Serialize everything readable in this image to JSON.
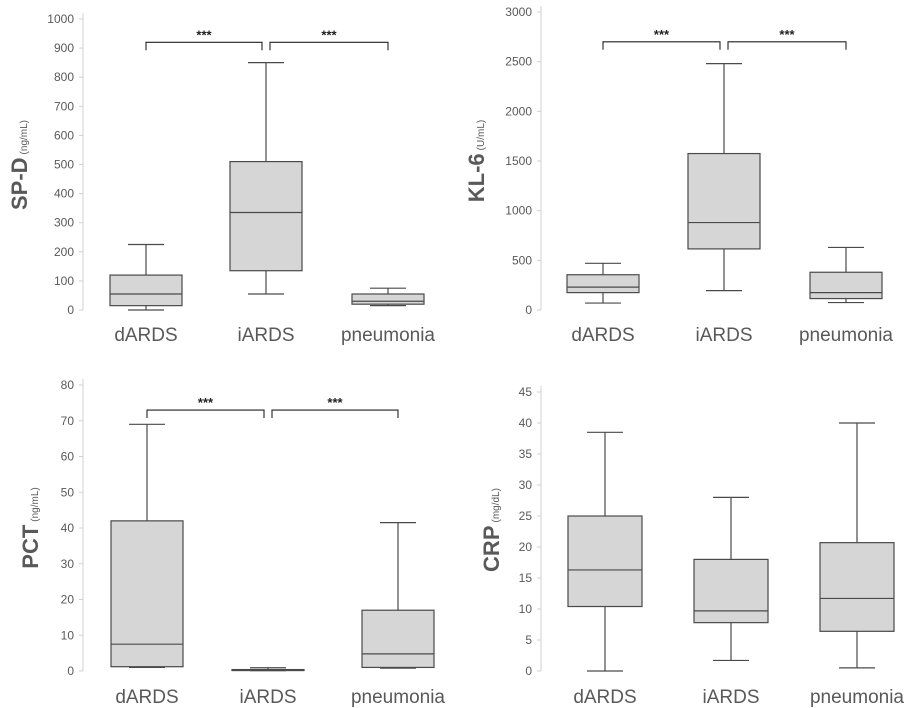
{
  "chart_data": [
    {
      "type": "box",
      "ylabel": "SP-D",
      "yunit": "(ng/mL)",
      "ylim": [
        0,
        1000
      ],
      "yticks": [
        0,
        100,
        200,
        300,
        400,
        500,
        600,
        700,
        800,
        900,
        1000
      ],
      "categories": [
        "dARDS",
        "iARDS",
        "pneumonia"
      ],
      "boxes": [
        {
          "min": 0,
          "q1": 15,
          "median": 55,
          "q3": 120,
          "max": 225
        },
        {
          "min": 55,
          "q1": 135,
          "median": 335,
          "q3": 510,
          "max": 850
        },
        {
          "min": 15,
          "q1": 20,
          "median": 30,
          "q3": 55,
          "max": 75
        }
      ],
      "significance": [
        {
          "from": 0,
          "to": 1,
          "label": "***",
          "y": 920
        },
        {
          "from": 1,
          "to": 2,
          "label": "***",
          "y": 920
        }
      ]
    },
    {
      "type": "box",
      "ylabel": "KL-6",
      "yunit": "(U/mL)",
      "ylim": [
        0,
        3000
      ],
      "yticks": [
        0,
        500,
        1000,
        1500,
        2000,
        2500,
        3000
      ],
      "categories": [
        "dARDS",
        "iARDS",
        "pneumonia"
      ],
      "boxes": [
        {
          "min": 70,
          "q1": 175,
          "median": 230,
          "q3": 355,
          "max": 470
        },
        {
          "min": 195,
          "q1": 615,
          "median": 880,
          "q3": 1575,
          "max": 2480
        },
        {
          "min": 75,
          "q1": 115,
          "median": 175,
          "q3": 380,
          "max": 630
        }
      ],
      "significance": [
        {
          "from": 0,
          "to": 1,
          "label": "***",
          "y": 2700
        },
        {
          "from": 1,
          "to": 2,
          "label": "***",
          "y": 2700
        }
      ]
    },
    {
      "type": "box",
      "ylabel": "PCT",
      "yunit": "(ng/mL)",
      "ylim": [
        0,
        80
      ],
      "yticks": [
        0,
        10,
        20,
        30,
        40,
        50,
        60,
        70,
        80
      ],
      "categories": [
        "dARDS",
        "iARDS",
        "pneumonia"
      ],
      "boxes": [
        {
          "min": 1,
          "q1": 1.2,
          "median": 7.5,
          "q3": 42,
          "max": 69
        },
        {
          "min": 0.1,
          "q1": 0.2,
          "median": 0.3,
          "q3": 0.4,
          "max": 0.9
        },
        {
          "min": 0.8,
          "q1": 1,
          "median": 4.8,
          "q3": 17,
          "max": 41.5
        }
      ],
      "significance": [
        {
          "from": 0,
          "to": 1,
          "label": "***",
          "y": 73
        },
        {
          "from": 1,
          "to": 2,
          "label": "***",
          "y": 73
        }
      ]
    },
    {
      "type": "box",
      "ylabel": "CRP",
      "yunit": "(mg/dL)",
      "ylim": [
        0,
        45
      ],
      "yticks": [
        0,
        5,
        10,
        15,
        20,
        25,
        30,
        35,
        40,
        45
      ],
      "categories": [
        "dARDS",
        "iARDS",
        "pneumonia"
      ],
      "boxes": [
        {
          "min": 0,
          "q1": 10.4,
          "median": 16.3,
          "q3": 25,
          "max": 38.5
        },
        {
          "min": 1.7,
          "q1": 7.8,
          "median": 9.7,
          "q3": 18,
          "max": 28
        },
        {
          "min": 0.5,
          "q1": 6.4,
          "median": 11.7,
          "q3": 20.7,
          "max": 40
        }
      ],
      "significance": []
    }
  ]
}
